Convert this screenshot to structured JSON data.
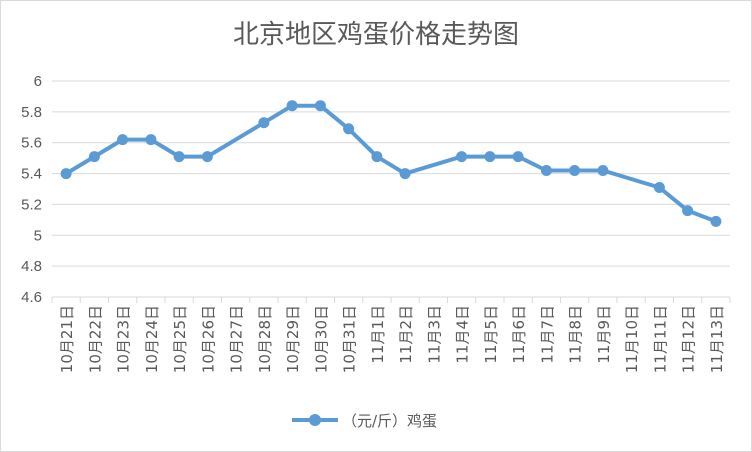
{
  "chart_data": {
    "type": "line",
    "title": "北京地区鸡蛋价格走势图",
    "xlabel": "",
    "ylabel": "",
    "ylim": [
      4.6,
      6
    ],
    "yticks": [
      "6",
      "5.8",
      "5.6",
      "5.4",
      "5.2",
      "5",
      "4.8",
      "4.6"
    ],
    "grid": true,
    "legend_position": "bottom",
    "categories": [
      "10月21日",
      "10月22日",
      "10月23日",
      "10月24日",
      "10月25日",
      "10月26日",
      "10月27日",
      "10月28日",
      "10月29日",
      "10月30日",
      "10月31日",
      "11月1日",
      "11月2日",
      "11月3日",
      "11月4日",
      "11月5日",
      "11月6日",
      "11月7日",
      "11月8日",
      "11月9日",
      "11月10日",
      "11月11日",
      "11月12日",
      "11月13日"
    ],
    "series": [
      {
        "name": "（元/斤）鸡蛋",
        "color": "#5b9bd5",
        "values": [
          5.4,
          5.51,
          5.62,
          5.62,
          5.51,
          5.51,
          null,
          5.73,
          5.84,
          5.84,
          5.69,
          5.51,
          5.4,
          null,
          5.51,
          5.51,
          5.51,
          5.42,
          5.42,
          5.42,
          null,
          5.31,
          5.16,
          5.09
        ]
      }
    ]
  }
}
